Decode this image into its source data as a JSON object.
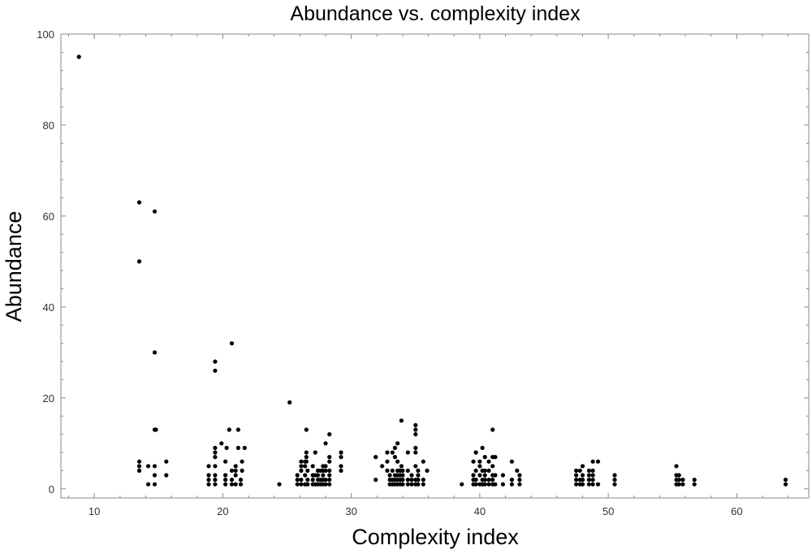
{
  "chart_data": {
    "type": "scatter",
    "title": "Abundance vs. complexity index",
    "xlabel": "Complexity index",
    "ylabel": "Abundance",
    "xlim": [
      7.4,
      65.6
    ],
    "ylim": [
      -2,
      100
    ],
    "xticks": [
      10,
      20,
      30,
      40,
      50,
      60
    ],
    "yticks": [
      0,
      20,
      40,
      60,
      80,
      100
    ],
    "grid": false,
    "point_color": "#000000",
    "series": [
      {
        "points": [
          [
            8.8,
            95
          ],
          [
            13.5,
            63
          ],
          [
            13.5,
            50
          ],
          [
            13.5,
            6
          ],
          [
            13.5,
            5
          ],
          [
            13.5,
            4
          ],
          [
            14.2,
            5
          ],
          [
            14.2,
            1
          ],
          [
            14.7,
            61
          ],
          [
            14.7,
            30
          ],
          [
            14.7,
            13
          ],
          [
            14.7,
            5
          ],
          [
            14.7,
            3
          ],
          [
            14.7,
            1
          ],
          [
            14.8,
            13
          ],
          [
            15.6,
            6
          ],
          [
            15.6,
            3
          ],
          [
            18.9,
            5
          ],
          [
            18.9,
            3
          ],
          [
            18.9,
            2
          ],
          [
            18.9,
            1
          ],
          [
            19.4,
            28
          ],
          [
            19.4,
            26
          ],
          [
            19.4,
            9
          ],
          [
            19.4,
            8
          ],
          [
            19.4,
            7
          ],
          [
            19.4,
            5
          ],
          [
            19.4,
            3
          ],
          [
            19.4,
            2
          ],
          [
            19.4,
            1
          ],
          [
            19.9,
            10
          ],
          [
            20.2,
            6
          ],
          [
            20.2,
            3
          ],
          [
            20.2,
            2
          ],
          [
            20.2,
            1
          ],
          [
            20.3,
            9
          ],
          [
            20.5,
            13
          ],
          [
            20.7,
            32
          ],
          [
            20.7,
            4
          ],
          [
            20.7,
            2
          ],
          [
            20.7,
            1
          ],
          [
            21.0,
            5
          ],
          [
            21.0,
            4
          ],
          [
            21.0,
            3
          ],
          [
            21.0,
            1
          ],
          [
            21.2,
            13
          ],
          [
            21.2,
            9
          ],
          [
            21.4,
            2
          ],
          [
            21.4,
            1
          ],
          [
            21.5,
            6
          ],
          [
            21.5,
            4
          ],
          [
            21.7,
            9
          ],
          [
            24.4,
            1
          ],
          [
            25.2,
            19
          ],
          [
            25.8,
            3
          ],
          [
            25.8,
            2
          ],
          [
            25.8,
            1
          ],
          [
            26.1,
            6
          ],
          [
            26.1,
            5
          ],
          [
            26.1,
            4
          ],
          [
            26.1,
            2
          ],
          [
            26.1,
            1
          ],
          [
            26.4,
            6
          ],
          [
            26.4,
            5
          ],
          [
            26.4,
            3
          ],
          [
            26.4,
            1
          ],
          [
            26.5,
            13
          ],
          [
            26.5,
            8
          ],
          [
            26.5,
            7
          ],
          [
            26.5,
            6
          ],
          [
            26.6,
            4
          ],
          [
            26.6,
            2
          ],
          [
            26.6,
            1
          ],
          [
            27.0,
            5
          ],
          [
            27.0,
            3
          ],
          [
            27.0,
            2
          ],
          [
            27.0,
            1
          ],
          [
            27.2,
            8
          ],
          [
            27.2,
            3
          ],
          [
            27.2,
            1
          ],
          [
            27.4,
            4
          ],
          [
            27.4,
            3
          ],
          [
            27.4,
            2
          ],
          [
            27.4,
            1
          ],
          [
            27.6,
            4
          ],
          [
            27.6,
            2
          ],
          [
            27.6,
            1
          ],
          [
            27.8,
            5
          ],
          [
            27.8,
            4
          ],
          [
            27.8,
            3
          ],
          [
            27.8,
            2
          ],
          [
            27.8,
            1
          ],
          [
            28.0,
            10
          ],
          [
            28.0,
            5
          ],
          [
            28.0,
            4
          ],
          [
            28.0,
            2
          ],
          [
            28.0,
            1
          ],
          [
            28.3,
            12
          ],
          [
            28.3,
            7
          ],
          [
            28.3,
            6
          ],
          [
            28.3,
            4
          ],
          [
            28.3,
            3
          ],
          [
            28.3,
            2
          ],
          [
            28.3,
            1
          ],
          [
            29.2,
            8
          ],
          [
            29.2,
            7
          ],
          [
            29.2,
            5
          ],
          [
            29.2,
            4
          ],
          [
            31.9,
            7
          ],
          [
            31.9,
            2
          ],
          [
            32.4,
            5
          ],
          [
            32.8,
            8
          ],
          [
            32.8,
            6
          ],
          [
            32.8,
            4
          ],
          [
            33.0,
            3
          ],
          [
            33.0,
            2
          ],
          [
            33.0,
            1
          ],
          [
            33.2,
            8
          ],
          [
            33.2,
            4
          ],
          [
            33.2,
            2
          ],
          [
            33.2,
            1
          ],
          [
            33.4,
            9
          ],
          [
            33.4,
            7
          ],
          [
            33.4,
            3
          ],
          [
            33.4,
            2
          ],
          [
            33.4,
            1
          ],
          [
            33.6,
            10
          ],
          [
            33.6,
            6
          ],
          [
            33.6,
            4
          ],
          [
            33.6,
            3
          ],
          [
            33.6,
            2
          ],
          [
            33.6,
            1
          ],
          [
            33.8,
            4
          ],
          [
            33.8,
            3
          ],
          [
            33.8,
            2
          ],
          [
            33.8,
            1
          ],
          [
            33.9,
            15
          ],
          [
            33.9,
            5
          ],
          [
            34.0,
            4
          ],
          [
            34.0,
            3
          ],
          [
            34.0,
            2
          ],
          [
            34.0,
            1
          ],
          [
            34.4,
            8
          ],
          [
            34.4,
            4
          ],
          [
            34.4,
            2
          ],
          [
            34.4,
            1
          ],
          [
            34.7,
            3
          ],
          [
            34.7,
            2
          ],
          [
            34.7,
            1
          ],
          [
            35.0,
            14
          ],
          [
            35.0,
            13
          ],
          [
            35.0,
            12
          ],
          [
            35.0,
            9
          ],
          [
            35.0,
            8
          ],
          [
            35.0,
            5
          ],
          [
            35.0,
            2
          ],
          [
            35.0,
            1
          ],
          [
            35.2,
            4
          ],
          [
            35.2,
            3
          ],
          [
            35.2,
            2
          ],
          [
            35.2,
            1
          ],
          [
            35.6,
            6
          ],
          [
            35.6,
            2
          ],
          [
            35.6,
            1
          ],
          [
            35.9,
            4
          ],
          [
            38.6,
            1
          ],
          [
            39.5,
            6
          ],
          [
            39.5,
            3
          ],
          [
            39.5,
            2
          ],
          [
            39.5,
            1
          ],
          [
            39.7,
            8
          ],
          [
            39.7,
            4
          ],
          [
            39.7,
            2
          ],
          [
            39.7,
            1
          ],
          [
            40.0,
            6
          ],
          [
            40.0,
            5
          ],
          [
            40.0,
            3
          ],
          [
            40.0,
            1
          ],
          [
            40.2,
            9
          ],
          [
            40.2,
            4
          ],
          [
            40.2,
            2
          ],
          [
            40.2,
            1
          ],
          [
            40.4,
            7
          ],
          [
            40.4,
            4
          ],
          [
            40.4,
            3
          ],
          [
            40.4,
            2
          ],
          [
            40.4,
            1
          ],
          [
            40.7,
            6
          ],
          [
            40.7,
            4
          ],
          [
            40.7,
            2
          ],
          [
            40.7,
            1
          ],
          [
            41.0,
            13
          ],
          [
            41.0,
            7
          ],
          [
            41.0,
            5
          ],
          [
            41.0,
            3
          ],
          [
            41.0,
            2
          ],
          [
            41.0,
            1
          ],
          [
            41.2,
            7
          ],
          [
            41.2,
            3
          ],
          [
            41.2,
            1
          ],
          [
            41.8,
            3
          ],
          [
            41.8,
            1
          ],
          [
            42.5,
            6
          ],
          [
            42.5,
            2
          ],
          [
            42.5,
            1
          ],
          [
            42.9,
            4
          ],
          [
            43.1,
            3
          ],
          [
            43.1,
            2
          ],
          [
            43.1,
            1
          ],
          [
            47.5,
            4
          ],
          [
            47.5,
            3
          ],
          [
            47.5,
            2
          ],
          [
            47.5,
            1
          ],
          [
            47.8,
            4
          ],
          [
            47.8,
            2
          ],
          [
            47.8,
            1
          ],
          [
            48.0,
            5
          ],
          [
            48.0,
            3
          ],
          [
            48.0,
            2
          ],
          [
            48.0,
            1
          ],
          [
            48.5,
            4
          ],
          [
            48.5,
            3
          ],
          [
            48.5,
            2
          ],
          [
            48.5,
            1
          ],
          [
            48.8,
            6
          ],
          [
            48.8,
            4
          ],
          [
            48.8,
            3
          ],
          [
            48.8,
            2
          ],
          [
            48.8,
            1
          ],
          [
            49.2,
            6
          ],
          [
            49.2,
            1
          ],
          [
            50.5,
            3
          ],
          [
            50.5,
            2
          ],
          [
            50.5,
            1
          ],
          [
            55.3,
            5
          ],
          [
            55.3,
            3
          ],
          [
            55.3,
            2
          ],
          [
            55.3,
            1
          ],
          [
            55.5,
            3
          ],
          [
            55.5,
            2
          ],
          [
            55.5,
            1
          ],
          [
            55.8,
            2
          ],
          [
            55.8,
            1
          ],
          [
            56.7,
            2
          ],
          [
            56.7,
            1
          ],
          [
            63.8,
            2
          ],
          [
            63.8,
            1
          ]
        ]
      }
    ]
  }
}
